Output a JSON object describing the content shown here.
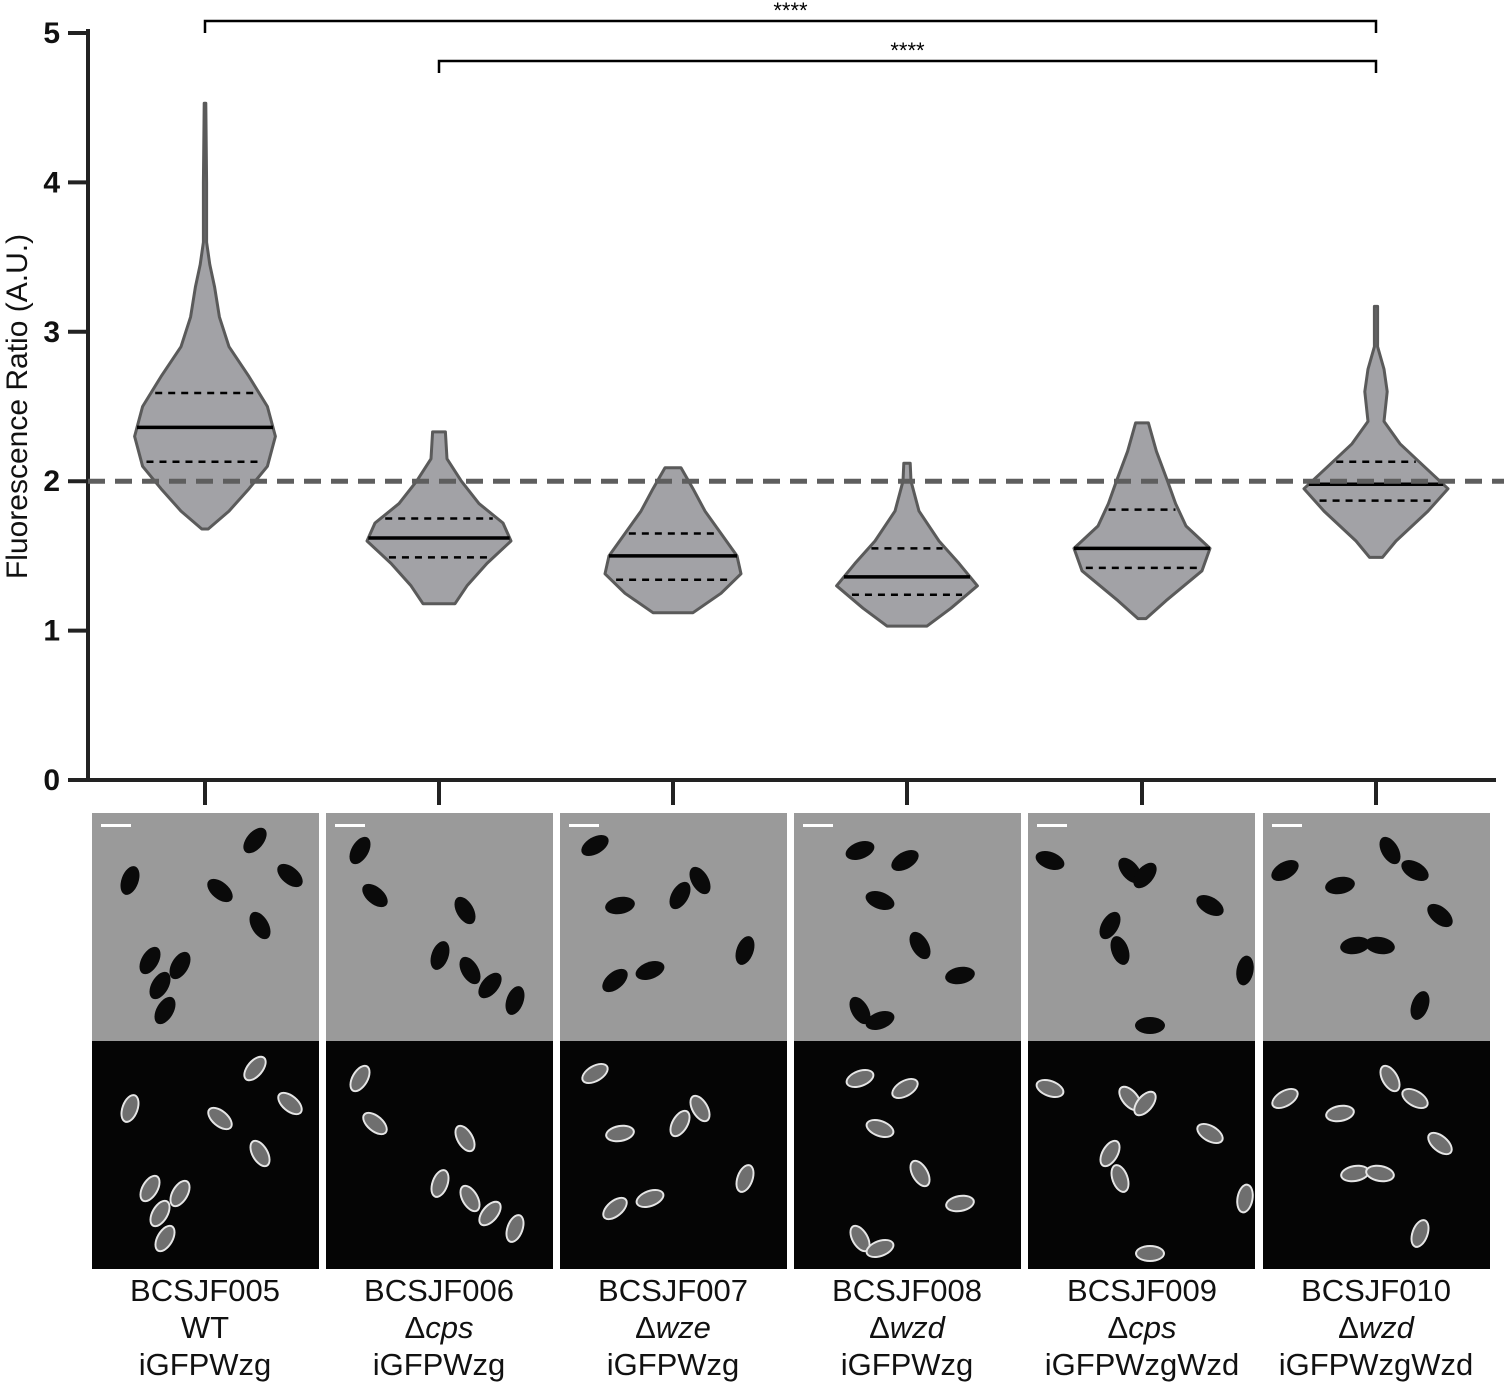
{
  "chart_data": {
    "type": "violin",
    "ylabel": "Fluorescence Ratio (A.U.)",
    "ylim": [
      0,
      5
    ],
    "yticks": [
      0,
      1,
      2,
      3,
      4,
      5
    ],
    "reference_line": 2,
    "groups": [
      {
        "strain": "BCSJF005",
        "genotype_prefix": "",
        "genotype": "WT",
        "construct": "iGFPWzg",
        "median": 2.36,
        "q1": 2.13,
        "q3": 2.59,
        "min": 1.68,
        "max": 4.53,
        "density": [
          [
            1.68,
            0.04
          ],
          [
            1.8,
            0.3
          ],
          [
            1.95,
            0.55
          ],
          [
            2.1,
            0.78
          ],
          [
            2.3,
            0.88
          ],
          [
            2.5,
            0.78
          ],
          [
            2.7,
            0.55
          ],
          [
            2.9,
            0.3
          ],
          [
            3.1,
            0.18
          ],
          [
            3.3,
            0.12
          ],
          [
            3.45,
            0.06
          ],
          [
            3.6,
            0.02
          ],
          [
            4.0,
            0.02
          ],
          [
            4.53,
            0.01
          ]
        ]
      },
      {
        "strain": "BCSJF006",
        "genotype_prefix": "Δ",
        "genotype": "cps",
        "construct": "iGFPWzg",
        "median": 1.62,
        "q1": 1.49,
        "q3": 1.75,
        "min": 1.18,
        "max": 2.33,
        "density": [
          [
            1.18,
            0.2
          ],
          [
            1.3,
            0.35
          ],
          [
            1.45,
            0.6
          ],
          [
            1.6,
            0.9
          ],
          [
            1.72,
            0.8
          ],
          [
            1.85,
            0.5
          ],
          [
            2.0,
            0.28
          ],
          [
            2.15,
            0.1
          ],
          [
            2.33,
            0.08
          ]
        ]
      },
      {
        "strain": "BCSJF007",
        "genotype_prefix": "Δ",
        "genotype": "wze",
        "construct": "iGFPWzg",
        "median": 1.5,
        "q1": 1.34,
        "q3": 1.65,
        "min": 1.12,
        "max": 2.09,
        "density": [
          [
            1.12,
            0.25
          ],
          [
            1.25,
            0.6
          ],
          [
            1.38,
            0.85
          ],
          [
            1.5,
            0.8
          ],
          [
            1.65,
            0.6
          ],
          [
            1.8,
            0.4
          ],
          [
            1.95,
            0.25
          ],
          [
            2.09,
            0.1
          ]
        ]
      },
      {
        "strain": "BCSJF008",
        "genotype_prefix": "Δ",
        "genotype": "wzd",
        "construct": "iGFPWzg",
        "median": 1.36,
        "q1": 1.24,
        "q3": 1.55,
        "min": 1.03,
        "max": 2.12,
        "density": [
          [
            1.03,
            0.25
          ],
          [
            1.15,
            0.55
          ],
          [
            1.3,
            0.88
          ],
          [
            1.45,
            0.65
          ],
          [
            1.6,
            0.4
          ],
          [
            1.8,
            0.15
          ],
          [
            2.0,
            0.05
          ],
          [
            2.12,
            0.04
          ]
        ]
      },
      {
        "strain": "BCSJF009",
        "genotype_prefix": "Δ",
        "genotype": "cps",
        "construct": "iGFPWzgWzd",
        "median": 1.55,
        "q1": 1.42,
        "q3": 1.81,
        "min": 1.08,
        "max": 2.39,
        "density": [
          [
            1.08,
            0.05
          ],
          [
            1.2,
            0.3
          ],
          [
            1.4,
            0.75
          ],
          [
            1.55,
            0.85
          ],
          [
            1.7,
            0.55
          ],
          [
            1.85,
            0.42
          ],
          [
            2.0,
            0.32
          ],
          [
            2.2,
            0.18
          ],
          [
            2.39,
            0.08
          ]
        ]
      },
      {
        "strain": "BCSJF010",
        "genotype_prefix": "Δ",
        "genotype": "wzd",
        "construct": "iGFPWzgWzd",
        "median": 1.98,
        "q1": 1.87,
        "q3": 2.13,
        "min": 1.49,
        "max": 3.17,
        "density": [
          [
            1.49,
            0.08
          ],
          [
            1.6,
            0.25
          ],
          [
            1.8,
            0.65
          ],
          [
            1.95,
            0.9
          ],
          [
            2.1,
            0.6
          ],
          [
            2.25,
            0.3
          ],
          [
            2.4,
            0.1
          ],
          [
            2.6,
            0.14
          ],
          [
            2.75,
            0.1
          ],
          [
            2.9,
            0.02
          ],
          [
            3.17,
            0.02
          ]
        ]
      }
    ],
    "significance": [
      {
        "from": 0,
        "to": 5,
        "label": "****"
      },
      {
        "from": 1,
        "to": 5,
        "label": "****"
      }
    ]
  },
  "colors": {
    "violin_fill": "#a2a2a6",
    "violin_stroke": "#5a5a5a",
    "reference_line": "#5e5e5e",
    "axis": "#222222"
  }
}
